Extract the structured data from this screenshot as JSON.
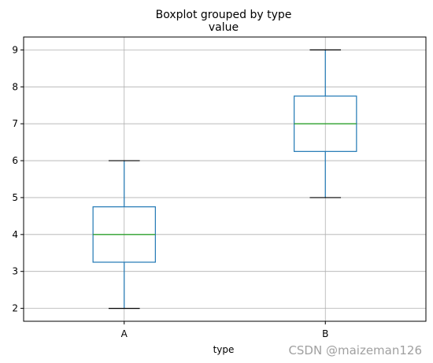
{
  "chart_data": {
    "type": "box",
    "suptitle": "Boxplot grouped by type",
    "title": "value",
    "xlabel": "type",
    "ylabel": "",
    "ylim": [
      1.65,
      9.35
    ],
    "yticks": [
      2,
      3,
      4,
      5,
      6,
      7,
      8,
      9
    ],
    "grid": true,
    "categories": [
      "A",
      "B"
    ],
    "boxes": [
      {
        "label": "A",
        "whislo": 2,
        "q1": 3.25,
        "med": 4,
        "q3": 4.75,
        "whishi": 6
      },
      {
        "label": "B",
        "whislo": 5,
        "q1": 6.25,
        "med": 7,
        "q3": 7.75,
        "whishi": 9
      }
    ],
    "colors": {
      "box": "#1f77b4",
      "median": "#2ca02c",
      "whisker": "#1f77b4",
      "cap": "#000000",
      "grid": "#b0b0b0"
    }
  },
  "watermark": "CSDN @maizeman126"
}
